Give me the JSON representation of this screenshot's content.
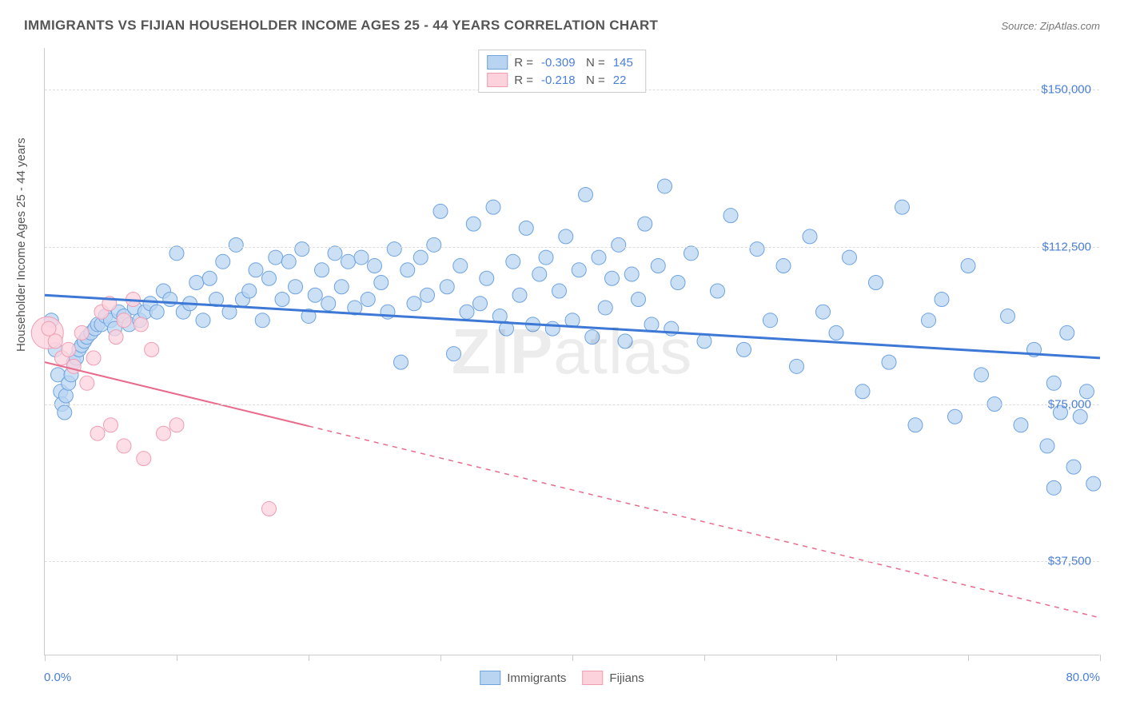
{
  "title": "IMMIGRANTS VS FIJIAN HOUSEHOLDER INCOME AGES 25 - 44 YEARS CORRELATION CHART",
  "source": "Source: ZipAtlas.com",
  "watermark_a": "ZIP",
  "watermark_b": "atlas",
  "chart": {
    "type": "scatter",
    "background_color": "#ffffff",
    "grid_color": "#dddddd",
    "axis_color": "#cccccc",
    "text_color": "#555555",
    "value_color": "#4a7fd6",
    "y_axis_title": "Householder Income Ages 25 - 44 years",
    "xlim": [
      0,
      80
    ],
    "ylim": [
      15000,
      160000
    ],
    "x_ticks": [
      0,
      10,
      20,
      30,
      40,
      50,
      60,
      70,
      80
    ],
    "x_label_min": "0.0%",
    "x_label_max": "80.0%",
    "y_gridlines": [
      37500,
      75000,
      112500,
      150000
    ],
    "y_tick_labels": [
      "$37,500",
      "$75,000",
      "$112,500",
      "$150,000"
    ],
    "legend_top": [
      {
        "swatch_fill": "#b9d4f1",
        "swatch_border": "#6ea3e0",
        "r_label": "R =",
        "r_value": "-0.309",
        "n_label": "N =",
        "n_value": "145"
      },
      {
        "swatch_fill": "#fcd3dd",
        "swatch_border": "#f09db2",
        "r_label": "R =",
        "r_value": "-0.218",
        "n_label": "N =",
        "n_value": "22"
      }
    ],
    "legend_bottom": [
      {
        "swatch_fill": "#b9d4f1",
        "swatch_border": "#6ea3e0",
        "label": "Immigrants"
      },
      {
        "swatch_fill": "#fcd3dd",
        "swatch_border": "#f09db2",
        "label": "Fijians"
      }
    ],
    "series": [
      {
        "name": "Immigrants",
        "marker_fill": "#b9d4f1",
        "marker_stroke": "#6ea3e0",
        "marker_opacity": 0.75,
        "marker_r": 9,
        "trend": {
          "color": "#3d78d6",
          "width": 3,
          "x1": 0,
          "y1": 101000,
          "x2": 80,
          "y2": 86000,
          "solid_until_x": 80
        },
        "points": [
          [
            0.5,
            95000
          ],
          [
            0.8,
            88000
          ],
          [
            1.0,
            82000
          ],
          [
            1.2,
            78000
          ],
          [
            1.3,
            75000
          ],
          [
            1.5,
            73000
          ],
          [
            1.6,
            77000
          ],
          [
            1.8,
            80000
          ],
          [
            2.0,
            82000
          ],
          [
            2.2,
            85000
          ],
          [
            2.4,
            86000
          ],
          [
            2.6,
            88000
          ],
          [
            2.8,
            89000
          ],
          [
            3.0,
            90000
          ],
          [
            3.2,
            91000
          ],
          [
            3.5,
            92000
          ],
          [
            3.8,
            93000
          ],
          [
            4.0,
            94000
          ],
          [
            4.3,
            94000
          ],
          [
            4.6,
            96000
          ],
          [
            5.0,
            95000
          ],
          [
            5.3,
            93000
          ],
          [
            5.6,
            97000
          ],
          [
            6.0,
            96000
          ],
          [
            6.4,
            94000
          ],
          [
            6.8,
            98000
          ],
          [
            7.2,
            95000
          ],
          [
            7.6,
            97000
          ],
          [
            8.0,
            99000
          ],
          [
            8.5,
            97000
          ],
          [
            9.0,
            102000
          ],
          [
            9.5,
            100000
          ],
          [
            10.0,
            111000
          ],
          [
            10.5,
            97000
          ],
          [
            11.0,
            99000
          ],
          [
            11.5,
            104000
          ],
          [
            12.0,
            95000
          ],
          [
            12.5,
            105000
          ],
          [
            13.0,
            100000
          ],
          [
            13.5,
            109000
          ],
          [
            14.0,
            97000
          ],
          [
            14.5,
            113000
          ],
          [
            15.0,
            100000
          ],
          [
            15.5,
            102000
          ],
          [
            16.0,
            107000
          ],
          [
            16.5,
            95000
          ],
          [
            17.0,
            105000
          ],
          [
            17.5,
            110000
          ],
          [
            18.0,
            100000
          ],
          [
            18.5,
            109000
          ],
          [
            19.0,
            103000
          ],
          [
            19.5,
            112000
          ],
          [
            20.0,
            96000
          ],
          [
            20.5,
            101000
          ],
          [
            21.0,
            107000
          ],
          [
            21.5,
            99000
          ],
          [
            22.0,
            111000
          ],
          [
            22.5,
            103000
          ],
          [
            23.0,
            109000
          ],
          [
            23.5,
            98000
          ],
          [
            24.0,
            110000
          ],
          [
            24.5,
            100000
          ],
          [
            25.0,
            108000
          ],
          [
            25.5,
            104000
          ],
          [
            26.0,
            97000
          ],
          [
            26.5,
            112000
          ],
          [
            27.0,
            85000
          ],
          [
            27.5,
            107000
          ],
          [
            28.0,
            99000
          ],
          [
            28.5,
            110000
          ],
          [
            29.0,
            101000
          ],
          [
            29.5,
            113000
          ],
          [
            30.0,
            121000
          ],
          [
            30.5,
            103000
          ],
          [
            31.0,
            87000
          ],
          [
            31.5,
            108000
          ],
          [
            32.0,
            97000
          ],
          [
            32.5,
            118000
          ],
          [
            33.0,
            99000
          ],
          [
            33.5,
            105000
          ],
          [
            34.0,
            122000
          ],
          [
            34.5,
            96000
          ],
          [
            35.0,
            93000
          ],
          [
            35.5,
            109000
          ],
          [
            36.0,
            101000
          ],
          [
            36.5,
            117000
          ],
          [
            37.0,
            94000
          ],
          [
            37.5,
            106000
          ],
          [
            38.0,
            110000
          ],
          [
            38.5,
            93000
          ],
          [
            39.0,
            102000
          ],
          [
            39.5,
            115000
          ],
          [
            40.0,
            95000
          ],
          [
            40.5,
            107000
          ],
          [
            41.0,
            125000
          ],
          [
            41.5,
            91000
          ],
          [
            42.0,
            110000
          ],
          [
            42.5,
            98000
          ],
          [
            43.0,
            105000
          ],
          [
            43.5,
            113000
          ],
          [
            44.0,
            90000
          ],
          [
            44.5,
            106000
          ],
          [
            45.0,
            100000
          ],
          [
            45.5,
            118000
          ],
          [
            46.0,
            94000
          ],
          [
            46.5,
            108000
          ],
          [
            47.0,
            127000
          ],
          [
            47.5,
            93000
          ],
          [
            48.0,
            104000
          ],
          [
            49.0,
            111000
          ],
          [
            50.0,
            90000
          ],
          [
            51.0,
            102000
          ],
          [
            52.0,
            120000
          ],
          [
            53.0,
            88000
          ],
          [
            54.0,
            112000
          ],
          [
            55.0,
            95000
          ],
          [
            56.0,
            108000
          ],
          [
            57.0,
            84000
          ],
          [
            58.0,
            115000
          ],
          [
            59.0,
            97000
          ],
          [
            60.0,
            92000
          ],
          [
            61.0,
            110000
          ],
          [
            62.0,
            78000
          ],
          [
            63.0,
            104000
          ],
          [
            64.0,
            85000
          ],
          [
            65.0,
            122000
          ],
          [
            66.0,
            70000
          ],
          [
            67.0,
            95000
          ],
          [
            68.0,
            100000
          ],
          [
            69.0,
            72000
          ],
          [
            70.0,
            108000
          ],
          [
            71.0,
            82000
          ],
          [
            72.0,
            75000
          ],
          [
            73.0,
            96000
          ],
          [
            74.0,
            70000
          ],
          [
            75.0,
            88000
          ],
          [
            76.0,
            65000
          ],
          [
            76.5,
            80000
          ],
          [
            77.0,
            73000
          ],
          [
            77.5,
            92000
          ],
          [
            78.0,
            60000
          ],
          [
            78.5,
            72000
          ],
          [
            79.0,
            78000
          ],
          [
            79.5,
            56000
          ],
          [
            76.5,
            55000
          ]
        ]
      },
      {
        "name": "Fijians",
        "marker_fill": "#fcd3dd",
        "marker_stroke": "#f09db2",
        "marker_opacity": 0.75,
        "marker_r": 9,
        "trend": {
          "color": "#e86b8c",
          "width": 2,
          "x1": 0,
          "y1": 85000,
          "x2": 80,
          "y2": 24000,
          "solid_until_x": 20
        },
        "points": [
          [
            0.3,
            93000
          ],
          [
            0.8,
            90000
          ],
          [
            1.3,
            86000
          ],
          [
            1.8,
            88000
          ],
          [
            2.2,
            84000
          ],
          [
            2.8,
            92000
          ],
          [
            3.2,
            80000
          ],
          [
            3.7,
            86000
          ],
          [
            4.3,
            97000
          ],
          [
            4.9,
            99000
          ],
          [
            5.4,
            91000
          ],
          [
            6.0,
            95000
          ],
          [
            6.7,
            100000
          ],
          [
            7.3,
            94000
          ],
          [
            8.1,
            88000
          ],
          [
            4.0,
            68000
          ],
          [
            5.0,
            70000
          ],
          [
            6.0,
            65000
          ],
          [
            7.5,
            62000
          ],
          [
            9.0,
            68000
          ],
          [
            10.0,
            70000
          ],
          [
            17.0,
            50000
          ]
        ],
        "big_point": {
          "x": 0.2,
          "y": 92000,
          "r": 20
        }
      }
    ]
  }
}
